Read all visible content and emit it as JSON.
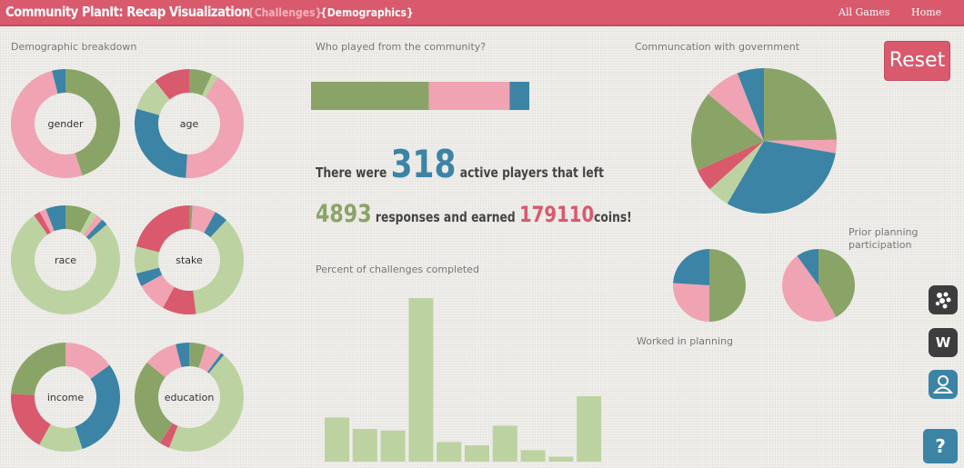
{
  "header": {
    "title": "Community PlanIt: Recap Visualization",
    "tabs": [
      "{Challenges}",
      "{Demographics}"
    ],
    "nav": [
      "All Games",
      "Home"
    ]
  },
  "colors": {
    "green": "#8aa468",
    "light_green": "#bcd3a1",
    "pink": "#f0a3b3",
    "red": "#d9596d",
    "blue": "#3b84a6",
    "header": "#d9596d"
  },
  "sections": {
    "demographics": "Demographic breakdown",
    "who_played": "Who played from the community?",
    "communication": "Communcation with government",
    "percent_challenges": "Percent of challenges completed"
  },
  "stats": {
    "prefix": "There were",
    "active_players": "318",
    "players_suffix": "active players that left",
    "responses": "4893",
    "responses_mid": "responses and earned",
    "coins": "179110",
    "coins_suffix": "coins!"
  },
  "buttons": {
    "reset": "Reset",
    "w": "W",
    "help": "?"
  },
  "chart_data": [
    {
      "type": "donut",
      "title": "gender",
      "slices": [
        {
          "value": 45,
          "color": "green"
        },
        {
          "value": 51,
          "color": "pink"
        },
        {
          "value": 4,
          "color": "blue"
        }
      ]
    },
    {
      "type": "donut",
      "title": "age",
      "slices": [
        {
          "value": 7,
          "color": "green"
        },
        {
          "value": 2,
          "color": "light_green"
        },
        {
          "value": 43,
          "color": "pink"
        },
        {
          "value": 29,
          "color": "blue"
        },
        {
          "value": 10,
          "color": "light_green"
        },
        {
          "value": 11,
          "color": "red"
        }
      ]
    },
    {
      "type": "donut",
      "title": "race",
      "slices": [
        {
          "value": 8,
          "color": "green"
        },
        {
          "value": 2,
          "color": "light_green"
        },
        {
          "value": 2,
          "color": "pink"
        },
        {
          "value": 2,
          "color": "blue"
        },
        {
          "value": 78,
          "color": "light_green"
        },
        {
          "value": 2,
          "color": "red"
        },
        {
          "value": 2,
          "color": "pink"
        },
        {
          "value": 6,
          "color": "blue"
        }
      ]
    },
    {
      "type": "donut",
      "title": "stake",
      "slices": [
        {
          "value": 1,
          "color": "green"
        },
        {
          "value": 7,
          "color": "pink"
        },
        {
          "value": 4,
          "color": "blue"
        },
        {
          "value": 36,
          "color": "light_green"
        },
        {
          "value": 10,
          "color": "red"
        },
        {
          "value": 9,
          "color": "pink"
        },
        {
          "value": 4,
          "color": "blue"
        },
        {
          "value": 8,
          "color": "light_green"
        },
        {
          "value": 21,
          "color": "red"
        }
      ]
    },
    {
      "type": "donut",
      "title": "income",
      "slices": [
        {
          "value": 15,
          "color": "pink"
        },
        {
          "value": 30,
          "color": "blue"
        },
        {
          "value": 13,
          "color": "light_green"
        },
        {
          "value": 18,
          "color": "red"
        },
        {
          "value": 24,
          "color": "green"
        }
      ]
    },
    {
      "type": "donut",
      "title": "education",
      "slices": [
        {
          "value": 5,
          "color": "green"
        },
        {
          "value": 5,
          "color": "pink"
        },
        {
          "value": 1,
          "color": "blue"
        },
        {
          "value": 45,
          "color": "light_green"
        },
        {
          "value": 3,
          "color": "red"
        },
        {
          "value": 27,
          "color": "green"
        },
        {
          "value": 10,
          "color": "pink"
        },
        {
          "value": 4,
          "color": "blue"
        }
      ]
    },
    {
      "type": "stacked-bar",
      "title": "Who played from the community?",
      "values": [
        54,
        37,
        9
      ],
      "colors": [
        "green",
        "pink",
        "blue"
      ]
    },
    {
      "type": "bar",
      "title": "Percent of challenges completed",
      "values": [
        27,
        20,
        19,
        100,
        12,
        10,
        22,
        7,
        3,
        40
      ],
      "ylim": [
        0,
        100
      ]
    },
    {
      "type": "pie",
      "title": "Communcation with government",
      "slices": [
        {
          "value": 25,
          "color": "green"
        },
        {
          "value": 3,
          "color": "pink"
        },
        {
          "value": 31,
          "color": "blue"
        },
        {
          "value": 5,
          "color": "light_green"
        },
        {
          "value": 5,
          "color": "red"
        },
        {
          "value": 18,
          "color": "green"
        },
        {
          "value": 8,
          "color": "pink"
        },
        {
          "value": 6,
          "color": "blue"
        }
      ]
    },
    {
      "type": "pie",
      "title": "Worked in planning",
      "slices": [
        {
          "value": 50,
          "color": "green"
        },
        {
          "value": 26,
          "color": "pink"
        },
        {
          "value": 24,
          "color": "blue"
        }
      ]
    },
    {
      "type": "pie",
      "title": "Prior planning participation",
      "slices": [
        {
          "value": 42,
          "color": "green"
        },
        {
          "value": 48,
          "color": "pink"
        },
        {
          "value": 10,
          "color": "blue"
        }
      ]
    }
  ]
}
